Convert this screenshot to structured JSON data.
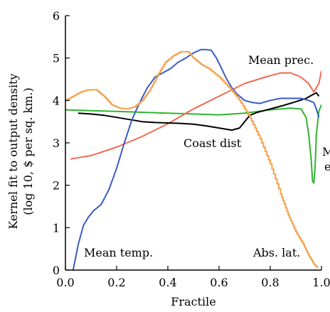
{
  "chart_data": {
    "type": "line",
    "xlabel": "Fractile",
    "ylabel_line1": "Kernel fit to output density",
    "ylabel_line2": "(log 10, $ per sq. km.)",
    "xlim": [
      0,
      1
    ],
    "ylim": [
      0,
      6
    ],
    "x_ticks": [
      "0.0",
      "0.2",
      "0.4",
      "0.6",
      "0.8",
      "1.0"
    ],
    "y_ticks": [
      "0",
      "1",
      "2",
      "3",
      "4",
      "5",
      "6"
    ],
    "colors": {
      "mean_temp": "#3a5bc7",
      "abs_lat": "#f5a04a",
      "mean_prec": "#f06a50",
      "coast_dist": "#000000",
      "green": "#2fb52f"
    },
    "annotations": [
      {
        "id": "mean-temp",
        "text": "Mean temp."
      },
      {
        "id": "abs-lat",
        "text": "Abs. lat."
      },
      {
        "id": "mean-prec",
        "text": "Mean prec."
      },
      {
        "id": "coast-dist",
        "text": "Coast dist"
      },
      {
        "id": "m-fragment",
        "text": "M"
      },
      {
        "id": "e-fragment",
        "text": "e"
      }
    ],
    "series": [
      {
        "id": "mean_temp",
        "x": [
          0.03,
          0.05,
          0.07,
          0.09,
          0.11,
          0.14,
          0.17,
          0.2,
          0.23,
          0.26,
          0.29,
          0.32,
          0.35,
          0.38,
          0.41,
          0.44,
          0.47,
          0.5,
          0.53,
          0.55,
          0.57,
          0.59,
          0.61,
          0.63,
          0.65,
          0.67,
          0.7,
          0.73,
          0.76,
          0.8,
          0.84,
          0.88,
          0.92,
          0.95,
          0.97,
          0.98,
          0.99
        ],
        "y": [
          0.0,
          0.6,
          1.05,
          1.25,
          1.4,
          1.55,
          1.9,
          2.4,
          3.0,
          3.55,
          3.95,
          4.3,
          4.55,
          4.65,
          4.75,
          4.9,
          5.0,
          5.12,
          5.2,
          5.2,
          5.18,
          5.0,
          4.75,
          4.5,
          4.3,
          4.15,
          4.0,
          3.95,
          3.93,
          4.0,
          4.05,
          4.05,
          4.05,
          4.0,
          3.95,
          3.8,
          3.6
        ]
      },
      {
        "id": "abs_lat",
        "x": [
          0.0,
          0.03,
          0.06,
          0.09,
          0.12,
          0.15,
          0.18,
          0.21,
          0.24,
          0.27,
          0.3,
          0.33,
          0.36,
          0.39,
          0.42,
          0.45,
          0.48,
          0.5,
          0.53,
          0.56,
          0.6,
          0.64,
          0.68,
          0.72,
          0.76,
          0.8,
          0.84,
          0.87,
          0.9,
          0.93,
          0.95,
          0.97,
          0.985
        ],
        "y": [
          4.0,
          4.1,
          4.2,
          4.25,
          4.25,
          4.1,
          3.9,
          3.82,
          3.8,
          3.85,
          4.0,
          4.25,
          4.6,
          4.9,
          5.05,
          5.15,
          5.15,
          5.0,
          4.85,
          4.75,
          4.55,
          4.3,
          4.0,
          3.6,
          3.1,
          2.5,
          1.8,
          1.3,
          0.9,
          0.6,
          0.35,
          0.15,
          0.05
        ]
      },
      {
        "id": "mean_prec",
        "x": [
          0.02,
          0.1,
          0.2,
          0.3,
          0.4,
          0.5,
          0.6,
          0.7,
          0.78,
          0.84,
          0.88,
          0.92,
          0.95,
          0.97,
          0.99,
          1.0
        ],
        "y": [
          2.62,
          2.7,
          2.9,
          3.15,
          3.45,
          3.8,
          4.1,
          4.4,
          4.55,
          4.65,
          4.65,
          4.55,
          4.4,
          4.2,
          4.4,
          4.7
        ]
      },
      {
        "id": "coast_dist",
        "x": [
          0.05,
          0.1,
          0.15,
          0.2,
          0.25,
          0.3,
          0.35,
          0.4,
          0.45,
          0.5,
          0.55,
          0.6,
          0.65,
          0.68,
          0.7,
          0.72,
          0.75,
          0.8,
          0.85,
          0.9,
          0.94,
          0.97,
          0.98,
          0.99
        ],
        "y": [
          3.7,
          3.68,
          3.65,
          3.6,
          3.55,
          3.5,
          3.48,
          3.47,
          3.46,
          3.44,
          3.4,
          3.35,
          3.3,
          3.35,
          3.5,
          3.65,
          3.72,
          3.8,
          3.88,
          3.97,
          4.05,
          4.15,
          4.18,
          4.1
        ]
      },
      {
        "id": "green",
        "x": [
          0.0,
          0.1,
          0.2,
          0.3,
          0.4,
          0.5,
          0.6,
          0.7,
          0.8,
          0.88,
          0.92,
          0.94,
          0.95,
          0.96,
          0.965,
          0.97,
          0.975,
          0.98,
          0.99,
          1.0
        ],
        "y": [
          3.78,
          3.76,
          3.74,
          3.72,
          3.7,
          3.68,
          3.66,
          3.7,
          3.78,
          3.82,
          3.8,
          3.6,
          3.2,
          2.6,
          2.1,
          2.05,
          2.4,
          3.2,
          3.75,
          3.9
        ]
      }
    ]
  }
}
